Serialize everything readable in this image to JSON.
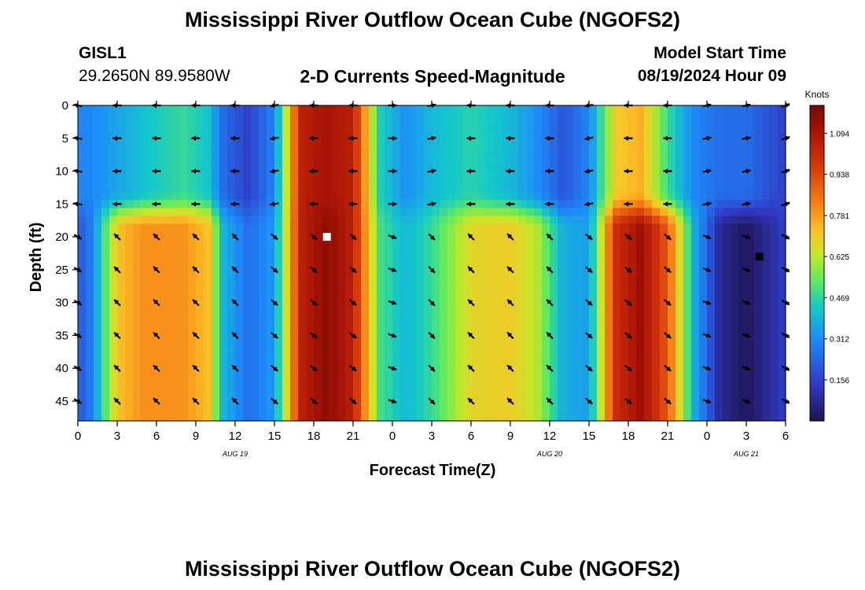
{
  "header": {
    "title": "Mississippi River Outflow Ocean Cube (NGOFS2)",
    "station": "GISL1",
    "coords": "29.2650N  89.9580W",
    "subtitle": "2-D Currents Speed-Magnitude",
    "start_label": "Model Start Time",
    "start_time": "08/19/2024 Hour 09"
  },
  "footer": {
    "title": "Mississippi River Outflow Ocean Cube (NGOFS2)"
  },
  "chart_data": {
    "type": "heatmap",
    "xlabel": "Forecast Time(Z)",
    "ylabel": "Depth (ft)",
    "x_tick_labels": [
      "0",
      "3",
      "6",
      "9",
      "12",
      "15",
      "18",
      "21",
      "0",
      "3",
      "6",
      "9",
      "12",
      "15",
      "18",
      "21",
      "0",
      "3",
      "6"
    ],
    "date_labels": [
      {
        "label": "AUG 19",
        "at_hour": 12
      },
      {
        "label": "AUG 20",
        "at_hour": 36
      },
      {
        "label": "AUG 21",
        "at_hour": 51
      }
    ],
    "xlim": [
      0,
      54
    ],
    "y_ticks": [
      0,
      5,
      10,
      15,
      20,
      25,
      30,
      35,
      40,
      45
    ],
    "ylim": [
      0,
      48
    ],
    "colorbar": {
      "title": "Knots",
      "ticks": [
        0.156,
        0.312,
        0.469,
        0.625,
        0.781,
        0.938,
        1.094
      ],
      "range": [
        0,
        1.2
      ]
    },
    "speed_profile": {
      "hours": [
        0,
        1,
        3,
        5,
        8,
        10,
        11,
        13,
        15,
        17,
        19,
        21,
        23,
        25,
        27,
        30,
        33,
        35,
        37,
        39,
        41,
        43,
        45,
        47,
        49,
        51,
        53,
        54
      ],
      "surface_speed": [
        0.3,
        0.3,
        0.36,
        0.42,
        0.48,
        0.42,
        0.25,
        0.15,
        0.3,
        1.05,
        1.1,
        1.05,
        0.45,
        0.32,
        0.4,
        0.46,
        0.4,
        0.32,
        0.2,
        0.3,
        0.7,
        0.75,
        0.48,
        0.3,
        0.25,
        0.25,
        0.18,
        0.15
      ],
      "deep_speed": [
        0.2,
        0.28,
        0.72,
        0.8,
        0.8,
        0.72,
        0.4,
        0.25,
        0.34,
        1.05,
        1.15,
        1.05,
        0.5,
        0.4,
        0.48,
        0.68,
        0.7,
        0.62,
        0.38,
        0.35,
        1.0,
        1.12,
        0.9,
        0.38,
        0.08,
        0.02,
        0.1,
        0.15
      ],
      "transition_depth_ft": 16
    },
    "arrow_hours": [
      0,
      3,
      6,
      9,
      12,
      15,
      18,
      21,
      24,
      27,
      30,
      33,
      36,
      39,
      42,
      45,
      48,
      51,
      54
    ],
    "arrow_depths": [
      0,
      5,
      10,
      15,
      20,
      25,
      30,
      35,
      40,
      45
    ],
    "surface_arrow_dir_deg": [
      170,
      180,
      180,
      180,
      180,
      190,
      180,
      180,
      0,
      10,
      180,
      180,
      180,
      190,
      180,
      180,
      10,
      10,
      20
    ],
    "deep_arrow_dir_deg": [
      -30,
      135,
      135,
      135,
      135,
      -40,
      -40,
      -40,
      -20,
      -45,
      135,
      135,
      135,
      -40,
      -40,
      -40,
      -20,
      -20,
      -30
    ],
    "markers": [
      {
        "hour": 19,
        "depth": 20,
        "color": "#ffffff"
      },
      {
        "hour": 52,
        "depth": 23,
        "color": "#000000"
      }
    ]
  }
}
